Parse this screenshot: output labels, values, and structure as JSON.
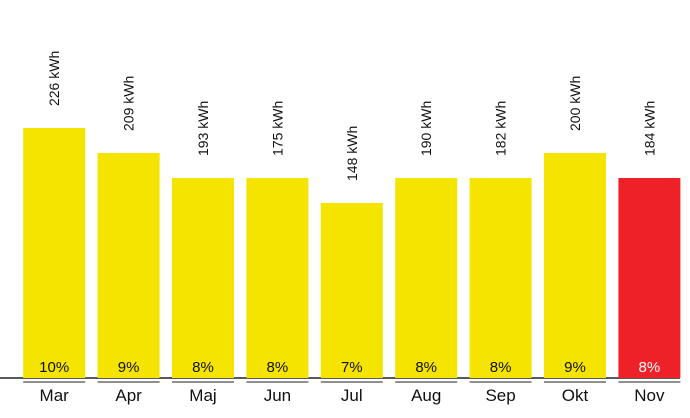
{
  "chart_data": {
    "type": "bar",
    "categories": [
      "Mar",
      "Apr",
      "Maj",
      "Jun",
      "Jul",
      "Aug",
      "Sep",
      "Okt",
      "Nov"
    ],
    "values": [
      10,
      9,
      8,
      8,
      7,
      8,
      8,
      9,
      8
    ],
    "value_labels": [
      "10%",
      "9%",
      "8%",
      "8%",
      "7%",
      "8%",
      "8%",
      "9%",
      "8%"
    ],
    "energy_labels": [
      "226 kWh",
      "209 kWh",
      "193 kWh",
      "175 kWh",
      "148 kWh",
      "190 kWh",
      "182 kWh",
      "200 kWh",
      "184 kWh"
    ],
    "colors": [
      "#f5e400",
      "#f5e400",
      "#f5e400",
      "#f5e400",
      "#f5e400",
      "#f5e400",
      "#f5e400",
      "#f5e400",
      "#ee2028"
    ],
    "ylim": [
      0,
      15
    ]
  }
}
